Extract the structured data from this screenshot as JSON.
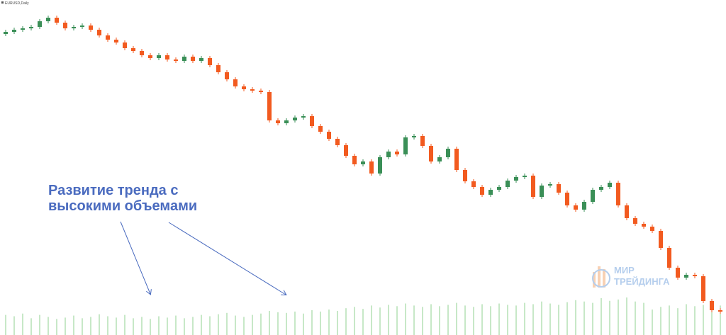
{
  "chart_data": {
    "type": "candlestick",
    "title": "EURUSD,Daily",
    "annotation": [
      "Развитие тренда с",
      "высокими объемами"
    ],
    "watermark": [
      "МИР",
      "ТРЕЙДИНГА"
    ],
    "open": [
      1.1856,
      1.1865,
      1.1874,
      1.188,
      1.1886,
      1.191,
      1.1925,
      1.1904,
      1.188,
      1.1886,
      1.1892,
      1.1874,
      1.185,
      1.1832,
      1.182,
      1.1796,
      1.1784,
      1.1766,
      1.1754,
      1.1766,
      1.1748,
      1.1742,
      1.176,
      1.1742,
      1.1754,
      1.1724,
      1.1694,
      1.1664,
      1.1634,
      1.1622,
      1.1616,
      1.161,
      1.149,
      1.1478,
      1.149,
      1.1502,
      1.1508,
      1.1466,
      1.1442,
      1.1412,
      1.1385,
      1.134,
      1.1304,
      1.1316,
      1.1265,
      1.1334,
      1.1358,
      1.1346,
      1.1418,
      1.1424,
      1.1382,
      1.1316,
      1.1334,
      1.137,
      1.128,
      1.1232,
      1.1208,
      1.1175,
      1.1196,
      1.1208,
      1.1235,
      1.125,
      1.1256,
      1.1166,
      1.1214,
      1.122,
      1.1184,
      1.113,
      1.1112,
      1.1145,
      1.1196,
      1.1208,
      1.1226,
      1.113,
      1.1076,
      1.1052,
      1.104,
      1.1022,
      1.095,
      1.0866,
      1.0824,
      1.0836,
      1.083,
      1.0725,
      1.0686
    ],
    "high": [
      1.1874,
      1.1883,
      1.1889,
      1.1895,
      1.1919,
      1.1934,
      1.1934,
      1.1913,
      1.1895,
      1.1901,
      1.1901,
      1.1883,
      1.1859,
      1.1841,
      1.1829,
      1.1805,
      1.1793,
      1.1775,
      1.1775,
      1.1775,
      1.1757,
      1.1769,
      1.1769,
      1.1763,
      1.1763,
      1.1733,
      1.1703,
      1.1673,
      1.1643,
      1.1631,
      1.1625,
      1.1619,
      1.1499,
      1.1499,
      1.1511,
      1.1517,
      1.1517,
      1.1475,
      1.1451,
      1.1421,
      1.1394,
      1.1349,
      1.1325,
      1.1325,
      1.1343,
      1.1367,
      1.1367,
      1.1427,
      1.1433,
      1.1433,
      1.1391,
      1.1343,
      1.1379,
      1.1379,
      1.1289,
      1.1241,
      1.1217,
      1.1205,
      1.1217,
      1.1244,
      1.1259,
      1.1265,
      1.1265,
      1.1223,
      1.1229,
      1.1229,
      1.1193,
      1.1139,
      1.1154,
      1.1205,
      1.1217,
      1.1235,
      1.1235,
      1.1139,
      1.1085,
      1.1061,
      1.1049,
      1.1031,
      1.0959,
      1.0875,
      1.0845,
      1.0845,
      1.0839,
      1.0734,
      1.0695
    ],
    "low": [
      1.1847,
      1.1856,
      1.1865,
      1.1871,
      1.1877,
      1.1901,
      1.1895,
      1.1871,
      1.1871,
      1.1877,
      1.1865,
      1.1841,
      1.1823,
      1.1811,
      1.1787,
      1.1775,
      1.1757,
      1.1745,
      1.1745,
      1.1739,
      1.1733,
      1.1733,
      1.1733,
      1.1733,
      1.1715,
      1.1685,
      1.1655,
      1.1625,
      1.1613,
      1.1607,
      1.1601,
      1.1481,
      1.1469,
      1.1469,
      1.1481,
      1.1493,
      1.1457,
      1.1433,
      1.1403,
      1.1376,
      1.1331,
      1.1295,
      1.1295,
      1.1256,
      1.1256,
      1.1325,
      1.1337,
      1.1337,
      1.1409,
      1.1373,
      1.1307,
      1.1307,
      1.1325,
      1.1271,
      1.1223,
      1.1199,
      1.1166,
      1.1166,
      1.1187,
      1.1199,
      1.1226,
      1.1241,
      1.1157,
      1.1157,
      1.1205,
      1.1175,
      1.1121,
      1.1103,
      1.1103,
      1.1136,
      1.1187,
      1.1199,
      1.1121,
      1.1067,
      1.1043,
      1.1031,
      1.1013,
      1.0941,
      1.0857,
      1.0815,
      1.0815,
      1.0821,
      1.0716,
      1.0677,
      1.0671
    ],
    "close": [
      1.1865,
      1.1874,
      1.188,
      1.1886,
      1.191,
      1.1925,
      1.1904,
      1.188,
      1.1886,
      1.1892,
      1.1874,
      1.185,
      1.1832,
      1.182,
      1.1796,
      1.1784,
      1.1766,
      1.1754,
      1.1766,
      1.1748,
      1.1742,
      1.176,
      1.1742,
      1.1754,
      1.1724,
      1.1694,
      1.1664,
      1.1634,
      1.1622,
      1.1616,
      1.161,
      1.149,
      1.1478,
      1.149,
      1.1502,
      1.1508,
      1.1466,
      1.1442,
      1.1412,
      1.1385,
      1.134,
      1.1304,
      1.1316,
      1.1265,
      1.1334,
      1.1358,
      1.1346,
      1.1418,
      1.1424,
      1.1382,
      1.1316,
      1.1334,
      1.137,
      1.128,
      1.1232,
      1.1208,
      1.1175,
      1.1196,
      1.1208,
      1.1235,
      1.125,
      1.1256,
      1.1166,
      1.1214,
      1.122,
      1.1184,
      1.113,
      1.1112,
      1.1145,
      1.1196,
      1.1208,
      1.1226,
      1.113,
      1.1076,
      1.1052,
      1.104,
      1.1022,
      1.095,
      1.0866,
      1.0824,
      1.0836,
      1.083,
      1.0725,
      1.0686,
      1.068
    ],
    "volume": [
      30,
      28,
      32,
      25,
      30,
      27,
      24,
      26,
      29,
      25,
      27,
      31,
      28,
      26,
      30,
      25,
      27,
      24,
      28,
      26,
      29,
      25,
      27,
      30,
      28,
      31,
      33,
      29,
      27,
      30,
      32,
      36,
      34,
      33,
      35,
      32,
      37,
      35,
      38,
      36,
      40,
      42,
      39,
      44,
      41,
      45,
      43,
      47,
      44,
      42,
      46,
      43,
      45,
      48,
      44,
      42,
      46,
      43,
      47,
      45,
      44,
      48,
      46,
      50,
      47,
      45,
      49,
      52,
      50,
      48,
      55,
      51,
      53,
      56,
      50,
      48,
      38,
      42,
      44,
      40,
      46,
      43,
      45,
      47,
      44
    ],
    "ylim": [
      1.0581,
      1.2
    ],
    "y2lim": [
      0,
      500
    ],
    "up_color": "#3a8f57",
    "down_color": "#f25a1f",
    "volume_color": "#8fd08f",
    "annotation_color": "#4a6bbf"
  }
}
